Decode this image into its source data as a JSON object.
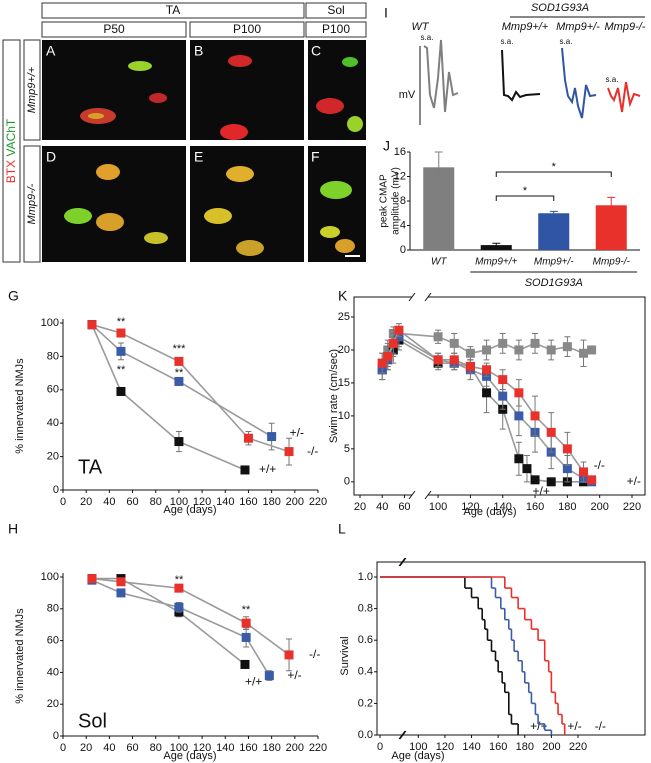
{
  "figure": {
    "columns": [
      "TA",
      "Sol"
    ],
    "timepoints": [
      "P50",
      "P100",
      "P100"
    ],
    "stains": [
      "BTX",
      "VAChT"
    ],
    "genotypes": [
      "Mmp9+/+",
      "Mmp9-/-"
    ],
    "panels": [
      "A",
      "B",
      "C",
      "D",
      "E",
      "F"
    ]
  },
  "traces": {
    "panel": "I",
    "labels": [
      "WT",
      "Mmp9+/+",
      "Mmp9+/-",
      "Mmp9-/-"
    ],
    "group": "SOD1G93A",
    "marker": "s.a.",
    "unit": "mV"
  },
  "chart_data": [
    {
      "type": "bar",
      "panel": "J",
      "ylabel": [
        "peak CMAP",
        "amplitude (mV)"
      ],
      "categories": [
        "WT",
        "Mmp9+/+",
        "Mmp9+/-",
        "Mmp9-/-"
      ],
      "values": [
        13.5,
        0.8,
        6,
        7.3
      ],
      "errors": [
        2.5,
        0.3,
        0.3,
        1.3
      ],
      "colors": [
        "#7f7f7f",
        "#111111",
        "#2f55a4",
        "#e8312a"
      ],
      "group_label": "SOD1G93A",
      "annotations": [
        "*",
        "*"
      ],
      "ylim": [
        0,
        16
      ],
      "yticks": [
        0,
        4,
        8,
        12,
        16
      ]
    },
    {
      "type": "line",
      "panel": "G",
      "label": "TA",
      "xlabel": "Age (days)",
      "ylabel": "% innervated NMJs",
      "xlim": [
        0,
        220
      ],
      "xticks": [
        0,
        20,
        40,
        60,
        80,
        100,
        120,
        140,
        160,
        180,
        200,
        220
      ],
      "ylim": [
        0,
        100
      ],
      "yticks": [
        0,
        20,
        40,
        60,
        80,
        100
      ],
      "line_color": "#9a9a9a",
      "marker": "square",
      "annotations": [
        "**",
        "**",
        "***",
        "**"
      ],
      "series": [
        {
          "name": "+/+",
          "color": "#111111",
          "x": [
            25,
            50,
            100,
            157
          ],
          "values": [
            99,
            59,
            29,
            12
          ],
          "errors": [
            1,
            2,
            6,
            1
          ]
        },
        {
          "name": "+/-",
          "color": "#3a5ca8",
          "x": [
            25,
            50,
            100,
            180
          ],
          "values": [
            99,
            83,
            65,
            32
          ],
          "errors": [
            1,
            5,
            2,
            8
          ]
        },
        {
          "name": "-/-",
          "color": "#e8312a",
          "x": [
            25,
            50,
            100,
            160,
            195
          ],
          "values": [
            99,
            94,
            77,
            31,
            23
          ],
          "errors": [
            1,
            2,
            2,
            4,
            8
          ]
        }
      ]
    },
    {
      "type": "line",
      "panel": "H",
      "label": "Sol",
      "xlabel": "Age (days)",
      "ylabel": "% innervated NMJs",
      "xlim": [
        0,
        220
      ],
      "xticks": [
        0,
        20,
        40,
        60,
        80,
        100,
        120,
        140,
        160,
        180,
        200,
        220
      ],
      "ylim": [
        0,
        100
      ],
      "yticks": [
        0,
        20,
        40,
        60,
        80,
        100
      ],
      "line_color": "#9a9a9a",
      "marker": "square",
      "annotations": [
        "**",
        "**"
      ],
      "series": [
        {
          "name": "+/+",
          "color": "#111111",
          "x": [
            25,
            50,
            100,
            157
          ],
          "values": [
            99,
            99,
            78,
            45
          ],
          "errors": [
            2,
            2,
            3,
            1
          ]
        },
        {
          "name": "+/-",
          "color": "#3a5ca8",
          "x": [
            25,
            50,
            100,
            158,
            178
          ],
          "values": [
            98,
            90,
            81,
            62,
            38
          ],
          "errors": [
            2,
            2,
            3,
            6,
            3
          ]
        },
        {
          "name": "-/-",
          "color": "#e8312a",
          "x": [
            25,
            50,
            100,
            158,
            195
          ],
          "values": [
            99,
            97,
            93,
            71,
            51
          ],
          "errors": [
            2,
            2,
            2,
            4,
            10
          ]
        }
      ]
    },
    {
      "type": "line",
      "panel": "K",
      "xlabel": "Age (days)",
      "ylabel": "Swim rate (cm/sec)",
      "xlim": [
        20,
        220
      ],
      "xbreak": [
        65,
        95
      ],
      "xticks": [
        20,
        40,
        60,
        100,
        120,
        140,
        160,
        180,
        200,
        220
      ],
      "ylim": [
        -2,
        25
      ],
      "yticks": [
        0,
        5,
        10,
        15,
        20,
        25
      ],
      "line_color": "#9a9a9a",
      "marker": "square",
      "series": [
        {
          "color": "#888888",
          "x": [
            40,
            45,
            50,
            55,
            100,
            110,
            120,
            130,
            140,
            150,
            160,
            170,
            180,
            190,
            195
          ],
          "values": [
            18,
            20,
            22.5,
            22.5,
            22,
            21,
            19.5,
            20,
            21,
            20,
            21,
            20,
            20.5,
            19.5,
            20
          ],
          "errors": [
            1.5,
            1.5,
            1,
            1,
            1,
            1.5,
            1,
            1.5,
            1.5,
            1.5,
            1.5,
            1.5,
            1.5,
            2,
            0
          ]
        },
        {
          "name": "+/+",
          "color": "#111111",
          "x": [
            40,
            45,
            50,
            55,
            100,
            110,
            120,
            130,
            140,
            150,
            155,
            160,
            170,
            180,
            190
          ],
          "values": [
            17,
            19,
            20,
            21.5,
            18,
            18,
            17.5,
            13.5,
            11,
            3.5,
            2,
            0.3,
            0,
            0,
            0
          ],
          "errors": [
            1.5,
            2,
            2,
            1.5,
            1,
            1,
            1,
            3,
            3,
            2.5,
            2,
            0.5,
            0,
            0,
            0
          ]
        },
        {
          "name": "+/-",
          "color": "#3a5ca8",
          "x": [
            40,
            45,
            50,
            55,
            100,
            110,
            120,
            130,
            140,
            150,
            160,
            170,
            180,
            190,
            195
          ],
          "values": [
            17,
            18.5,
            21,
            22,
            18.5,
            18,
            17,
            16,
            13,
            10,
            7.5,
            4.5,
            2,
            0.5,
            0
          ],
          "errors": [
            1.5,
            1.5,
            2,
            1.5,
            1,
            1,
            1.5,
            1.5,
            2,
            3,
            3,
            2.5,
            2,
            0.5,
            0
          ]
        },
        {
          "name": "-/-",
          "color": "#e8312a",
          "x": [
            40,
            45,
            50,
            55,
            100,
            110,
            120,
            130,
            140,
            150,
            160,
            170,
            180,
            190,
            195
          ],
          "values": [
            18,
            19,
            21,
            23,
            18.5,
            18.5,
            17.5,
            17,
            15.5,
            13.5,
            10,
            7.5,
            5,
            1.5,
            0.3
          ],
          "errors": [
            1.5,
            1.5,
            1.5,
            1,
            1,
            1,
            1,
            1,
            1.5,
            2,
            3,
            3,
            2.5,
            1.5,
            0.3
          ]
        }
      ]
    },
    {
      "type": "line",
      "panel": "L",
      "step": true,
      "xlabel": "Age (days)",
      "ylabel": "Survival",
      "xlim": [
        0,
        220
      ],
      "xbreak": [
        15,
        90
      ],
      "xticks": [
        0,
        100,
        120,
        140,
        160,
        180,
        200,
        220
      ],
      "ylim": [
        0,
        1
      ],
      "yticks": [
        {
          "value": 0,
          "label": "0.0"
        },
        0.2,
        0.4,
        0.6,
        0.8,
        {
          "value": 1,
          "label": "1.0"
        }
      ],
      "series": [
        {
          "name": "+/+",
          "color": "#111111",
          "x": [
            0,
            135,
            140,
            145,
            148,
            150,
            152,
            155,
            158,
            160,
            163,
            165,
            168,
            170,
            175
          ],
          "values": [
            1,
            0.93,
            0.87,
            0.8,
            0.73,
            0.67,
            0.6,
            0.53,
            0.47,
            0.4,
            0.33,
            0.27,
            0.13,
            0.07,
            0
          ]
        },
        {
          "name": "+/-",
          "color": "#3a5ca8",
          "x": [
            0,
            155,
            158,
            162,
            165,
            168,
            170,
            172,
            175,
            178,
            180,
            183,
            185,
            188,
            190,
            195,
            200
          ],
          "values": [
            1,
            0.93,
            0.87,
            0.8,
            0.73,
            0.67,
            0.6,
            0.53,
            0.47,
            0.4,
            0.33,
            0.27,
            0.2,
            0.13,
            0.07,
            0.03,
            0
          ]
        },
        {
          "name": "-/-",
          "color": "#e8312a",
          "x": [
            0,
            165,
            170,
            175,
            180,
            185,
            190,
            195,
            198,
            200,
            203,
            205,
            208,
            210
          ],
          "values": [
            1,
            0.93,
            0.87,
            0.8,
            0.73,
            0.67,
            0.6,
            0.47,
            0.4,
            0.27,
            0.2,
            0.13,
            0.07,
            0
          ]
        }
      ]
    }
  ]
}
